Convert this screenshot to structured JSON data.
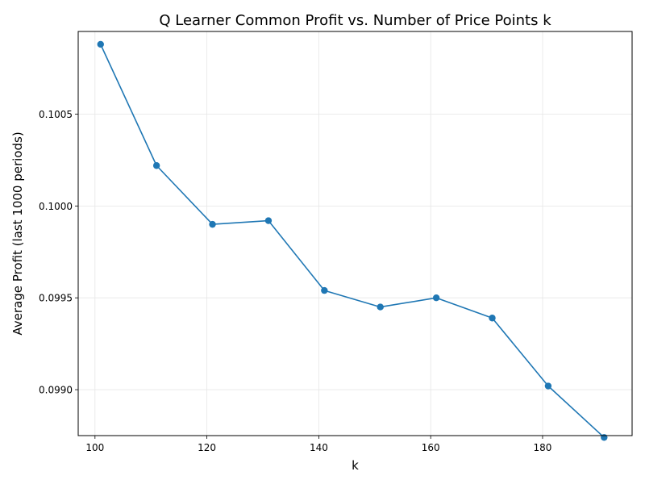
{
  "chart_data": {
    "type": "line",
    "title": "Q Learner Common Profit vs. Number of Price Points k",
    "xlabel": "k",
    "ylabel": "Average Profit (last 1000 periods)",
    "xlim": [
      97,
      196
    ],
    "ylim": [
      0.09875,
      0.10095
    ],
    "xticks": [
      100,
      120,
      140,
      160,
      180
    ],
    "xtick_labels": [
      "100",
      "120",
      "140",
      "160",
      "180"
    ],
    "yticks": [
      0.099,
      0.0995,
      0.1,
      0.1005
    ],
    "ytick_labels": [
      "0.0990",
      "0.0995",
      "0.1000",
      "0.1005"
    ],
    "grid": true,
    "markers": true,
    "colors": {
      "line": "#1f77b4",
      "grid": "#e6e6e6",
      "axes": "#000000"
    },
    "x": [
      101,
      111,
      121,
      131,
      141,
      151,
      161,
      171,
      181,
      191
    ],
    "series": [
      {
        "values": [
          0.10088,
          0.10022,
          0.0999,
          0.09992,
          0.09954,
          0.09945,
          0.0995,
          0.09939,
          0.09902,
          0.09874
        ]
      }
    ]
  }
}
